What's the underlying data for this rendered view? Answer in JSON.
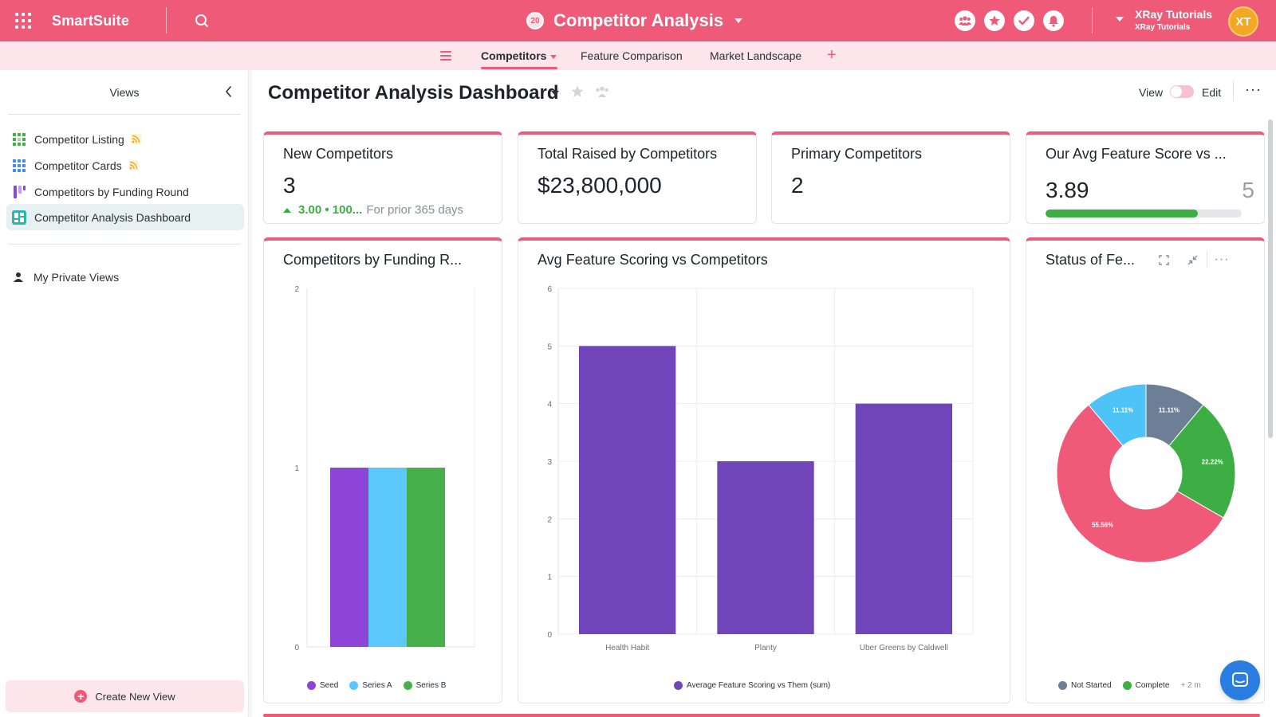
{
  "topbar": {
    "brand": "SmartSuite",
    "app_badge": "20",
    "app_title": "Competitor Analysis",
    "account_name": "XRay Tutorials",
    "account_sub": "XRay Tutorials",
    "avatar_initials": "XT",
    "icons": [
      "apps-grid-icon",
      "search-icon",
      "members-icon",
      "favorites-icon",
      "tasks-icon",
      "notifications-icon"
    ]
  },
  "tabs": {
    "items": [
      {
        "label": "Competitors"
      },
      {
        "label": "Feature Comparison"
      },
      {
        "label": "Market Landscape"
      }
    ],
    "add": "+"
  },
  "sidebar": {
    "title": "Views",
    "items": [
      {
        "label": "Competitor Listing",
        "icon": "grid-view-icon"
      },
      {
        "label": "Competitor Cards",
        "icon": "card-view-icon"
      },
      {
        "label": "Competitors by Funding Round",
        "icon": "kanban-view-icon"
      },
      {
        "label": "Competitor Analysis Dashboard",
        "icon": "dashboard-view-icon"
      }
    ],
    "private_views": "My Private Views",
    "create_button": "Create New View"
  },
  "main": {
    "title": "Competitor Analysis Dashboard",
    "mode_view": "View",
    "mode_edit": "Edit",
    "more": "···"
  },
  "kpis": [
    {
      "title": "New Competitors",
      "value": "3",
      "change": "3.00 • 100...",
      "prior": "For prior 365 days"
    },
    {
      "title": "Total Raised by Competitors",
      "value": "$23,800,000"
    },
    {
      "title": "Primary Competitors",
      "value": "2"
    },
    {
      "title": "Our Avg Feature Score vs ...",
      "value": "3.89",
      "target": "5",
      "progress": 0.778
    }
  ],
  "colors": {
    "brand": "#ef5a78",
    "seed": "#8e44d8",
    "series_a": "#5ac8fa",
    "series_b": "#46b04b",
    "feature_bar": "#7045b9",
    "not_started": "#6c7f96",
    "complete": "#3dae44",
    "in_progress": "#ef5a78",
    "other": "#4dc3f7"
  },
  "chart_data": [
    {
      "type": "bar",
      "title": "Competitors by Funding R...",
      "categories": [
        ""
      ],
      "series": [
        {
          "name": "Seed",
          "values": [
            1
          ]
        },
        {
          "name": "Series A",
          "values": [
            1
          ]
        },
        {
          "name": "Series B",
          "values": [
            1
          ]
        }
      ],
      "ylim": [
        0,
        2
      ],
      "yticks": [
        "0",
        "1",
        "2"
      ],
      "grid": false,
      "legend": "bottom"
    },
    {
      "type": "bar",
      "title": "Avg Feature Scoring vs Competitors",
      "categories": [
        "Health Habit",
        "Planty",
        "Uber Greens by Caldwell"
      ],
      "series": [
        {
          "name": "Average Feature Scoring vs Them (sum)",
          "values": [
            5,
            3,
            4
          ]
        }
      ],
      "ylim": [
        0,
        6
      ],
      "yticks": [
        "0",
        "1",
        "2",
        "3",
        "4",
        "5",
        "6"
      ],
      "grid": true,
      "legend": "bottom"
    },
    {
      "type": "pie",
      "title": "Status of Fe...",
      "slices": [
        {
          "name": "Not Started",
          "value": 11.11,
          "label": "11.11%"
        },
        {
          "name": "Complete",
          "value": 22.22,
          "label": "22.22%"
        },
        {
          "name": "",
          "value": 55.56,
          "label": "55.56%"
        },
        {
          "name": "",
          "value": 11.11,
          "label": "11.11%"
        }
      ],
      "legend_items": [
        "Not Started",
        "Complete"
      ],
      "legend_more": "+ 2 m",
      "legend": "bottom"
    }
  ]
}
